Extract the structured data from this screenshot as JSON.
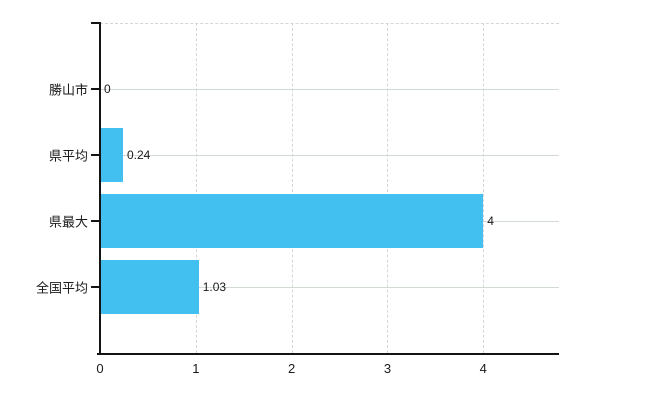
{
  "chart_data": {
    "type": "bar",
    "orientation": "horizontal",
    "title": "",
    "categories": [
      "勝山市",
      "県平均",
      "県最大",
      "全国平均"
    ],
    "values": [
      0,
      0.24,
      4,
      1.03
    ],
    "value_labels": [
      "0",
      "0.24",
      "4",
      "1.03"
    ],
    "x_ticks": [
      "0",
      "1",
      "2",
      "3",
      "4"
    ],
    "x_tick_values": [
      0,
      1,
      2,
      3,
      4
    ],
    "xlim": [
      0,
      4.79
    ],
    "grid": "on",
    "legend": "none",
    "bar_color": "#42c1f0",
    "axis_color": "#141414",
    "grid_vertical_color": "#d6d6d6",
    "grid_horizontal_color": "#d2dbd2",
    "text_color": "#1a1a1a"
  }
}
